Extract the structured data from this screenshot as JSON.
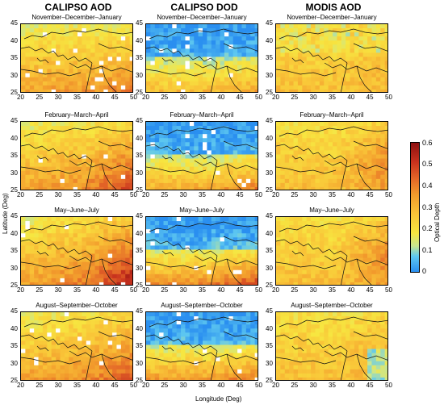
{
  "columns": [
    "CALIPSO AOD",
    "CALIPSO DOD",
    "MODIS AOD"
  ],
  "seasons": [
    "November–December–January",
    "February–March–April",
    "May–June–July",
    "August–September–October"
  ],
  "x_ticks": [
    "20",
    "25",
    "30",
    "35",
    "40",
    "45",
    "50"
  ],
  "y_ticks": [
    "45",
    "40",
    "35",
    "30",
    "25"
  ],
  "xlabel": "Longitude (Deg)",
  "ylabel": "Latitude (Deg)",
  "colorbar": {
    "label": "Optical Depth",
    "ticks": [
      "0.6",
      "0.5",
      "0.4",
      "0.3",
      "0.2",
      "0.1",
      "0"
    ]
  }
}
